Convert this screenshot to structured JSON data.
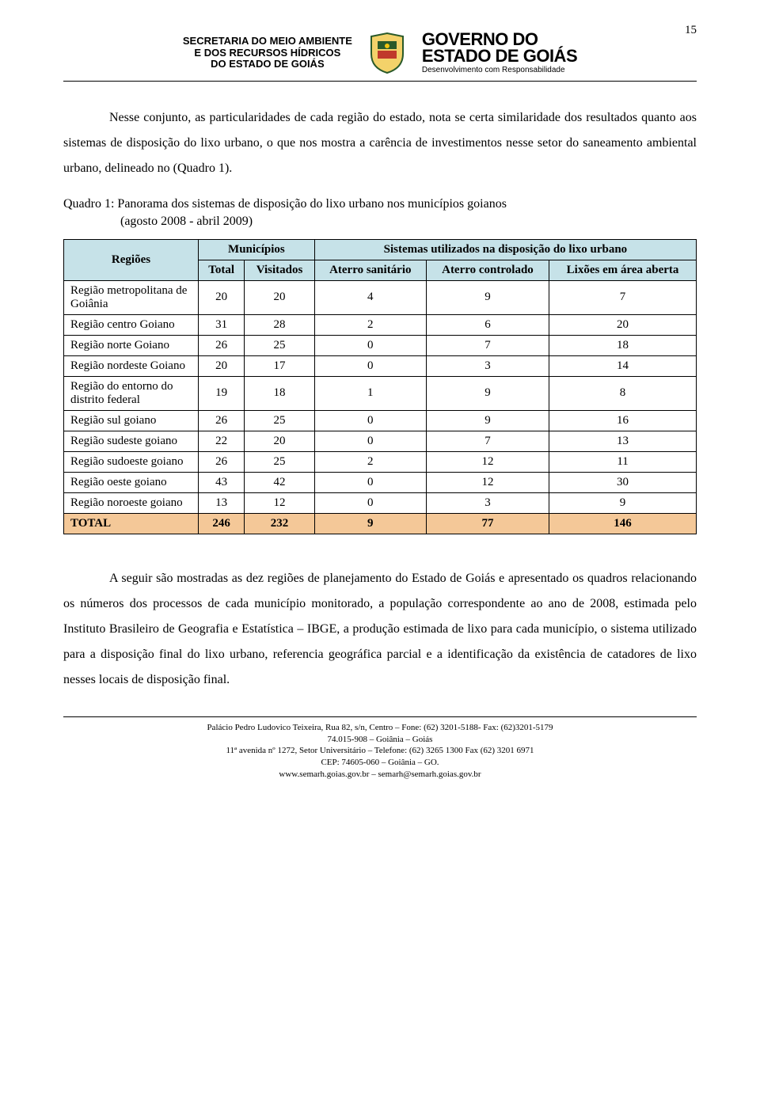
{
  "page_number": "15",
  "letterhead": {
    "secretaria_line1": "SECRETARIA DO MEIO AMBIENTE",
    "secretaria_line2": "E DOS RECURSOS HÍDRICOS",
    "secretaria_line3": "DO ESTADO DE GOIÁS",
    "governo_line1": "GOVERNO DO",
    "governo_line2": "ESTADO DE GOIÁS",
    "governo_sub": "Desenvolvimento com Responsabilidade"
  },
  "paragraph1": "Nesse conjunto, as particularidades de cada região do estado, nota se certa similaridade dos resultados quanto aos sistemas de disposição do lixo urbano, o que nos mostra a carência de investimentos nesse setor do saneamento ambiental urbano, delineado no (Quadro 1).",
  "table_caption_l1": "Quadro 1: Panorama dos sistemas de disposição do lixo urbano nos municípios goianos",
  "table_caption_l2": "(agosto 2008  - abril 2009)",
  "table": {
    "headers": {
      "regioes": "Regiões",
      "municipios": "Municípios",
      "total": "Total",
      "visitados": "Visitados",
      "sistemas": "Sistemas utilizados na disposição do lixo urbano",
      "aterro_san": "Aterro sanitário",
      "aterro_con": "Aterro controlado",
      "lixoes": "Lixões em área aberta"
    },
    "rows": [
      {
        "region": "Região metropolitana de Goiânia",
        "total": "20",
        "visitados": "20",
        "san": "4",
        "con": "9",
        "lix": "7"
      },
      {
        "region": "Região centro Goiano",
        "total": "31",
        "visitados": "28",
        "san": "2",
        "con": "6",
        "lix": "20"
      },
      {
        "region": "Região norte Goiano",
        "total": "26",
        "visitados": "25",
        "san": "0",
        "con": "7",
        "lix": "18"
      },
      {
        "region": "Região nordeste Goiano",
        "total": "20",
        "visitados": "17",
        "san": "0",
        "con": "3",
        "lix": "14"
      },
      {
        "region": "Região do entorno do distrito federal",
        "total": "19",
        "visitados": "18",
        "san": "1",
        "con": "9",
        "lix": "8"
      },
      {
        "region": "Região sul goiano",
        "total": "26",
        "visitados": "25",
        "san": "0",
        "con": "9",
        "lix": "16"
      },
      {
        "region": "Região sudeste goiano",
        "total": "22",
        "visitados": "20",
        "san": "0",
        "con": "7",
        "lix": "13"
      },
      {
        "region": "Região sudoeste goiano",
        "total": "26",
        "visitados": "25",
        "san": "2",
        "con": "12",
        "lix": "11"
      },
      {
        "region": "Região oeste goiano",
        "total": "43",
        "visitados": "42",
        "san": "0",
        "con": "12",
        "lix": "30"
      },
      {
        "region": "Região noroeste goiano",
        "total": "13",
        "visitados": "12",
        "san": "0",
        "con": "3",
        "lix": "9"
      }
    ],
    "total_row": {
      "label": "TOTAL",
      "total": "246",
      "visitados": "232",
      "san": "9",
      "con": "77",
      "lix": "146"
    },
    "header_bg": "#c6e2e8",
    "total_bg": "#f4c898"
  },
  "paragraph2": "A seguir são mostradas as dez regiões de planejamento do Estado de Goiás e apresentado os quadros relacionando os números dos processos de cada município monitorado, a população correspondente ao ano de 2008, estimada pelo Instituto Brasileiro de Geografia e Estatística – IBGE, a produção estimada de lixo para cada município, o sistema utilizado para a disposição final do lixo urbano, referencia geográfica parcial e a identificação da existência de catadores de lixo nesses locais de disposição final.",
  "footer": {
    "l1": "Palácio Pedro Ludovico Teixeira, Rua 82, s/n, Centro – Fone: (62) 3201-5188- Fax: (62)3201-5179",
    "l2": "74.015-908 – Goiânia – Goiás",
    "l3": "11ª avenida nº 1272, Setor Universitário – Telefone: (62) 3265 1300  Fax (62) 3201 6971",
    "l4": "CEP: 74605-060 – Goiânia – GO.",
    "l5": "www.semarh.goias.gov.br – semarh@semarh.goias.gov.br"
  }
}
